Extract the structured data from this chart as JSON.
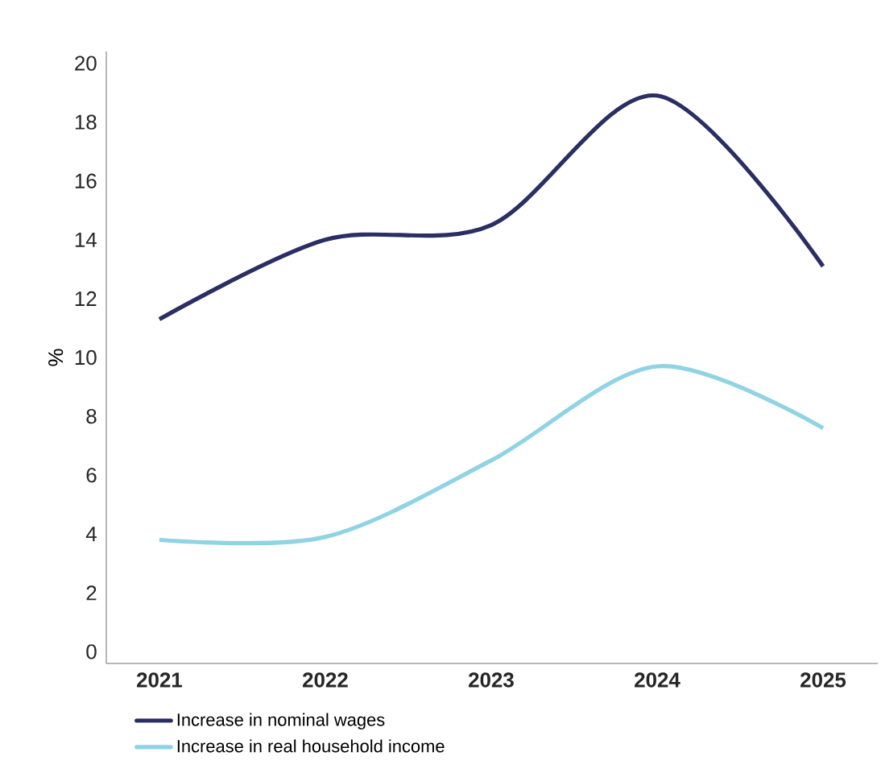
{
  "chart_data": {
    "type": "line",
    "ylabel": "%",
    "categories": [
      "2021",
      "2022",
      "2023",
      "2024",
      "2025"
    ],
    "series": [
      {
        "name": "Increase in nominal wages",
        "color": "#2b2e63",
        "values": [
          11.3,
          14.0,
          14.5,
          18.9,
          13.1
        ]
      },
      {
        "name": "Increase in real household income",
        "color": "#8fd3e4",
        "values": [
          3.8,
          3.9,
          6.5,
          9.7,
          7.6
        ]
      }
    ],
    "ylim": [
      -0.4,
      20.4
    ],
    "yticks": [
      0,
      2,
      4,
      6,
      8,
      10,
      12,
      14,
      16,
      18,
      20
    ],
    "grid": false,
    "legend": "bottom",
    "line_style": "solid"
  }
}
